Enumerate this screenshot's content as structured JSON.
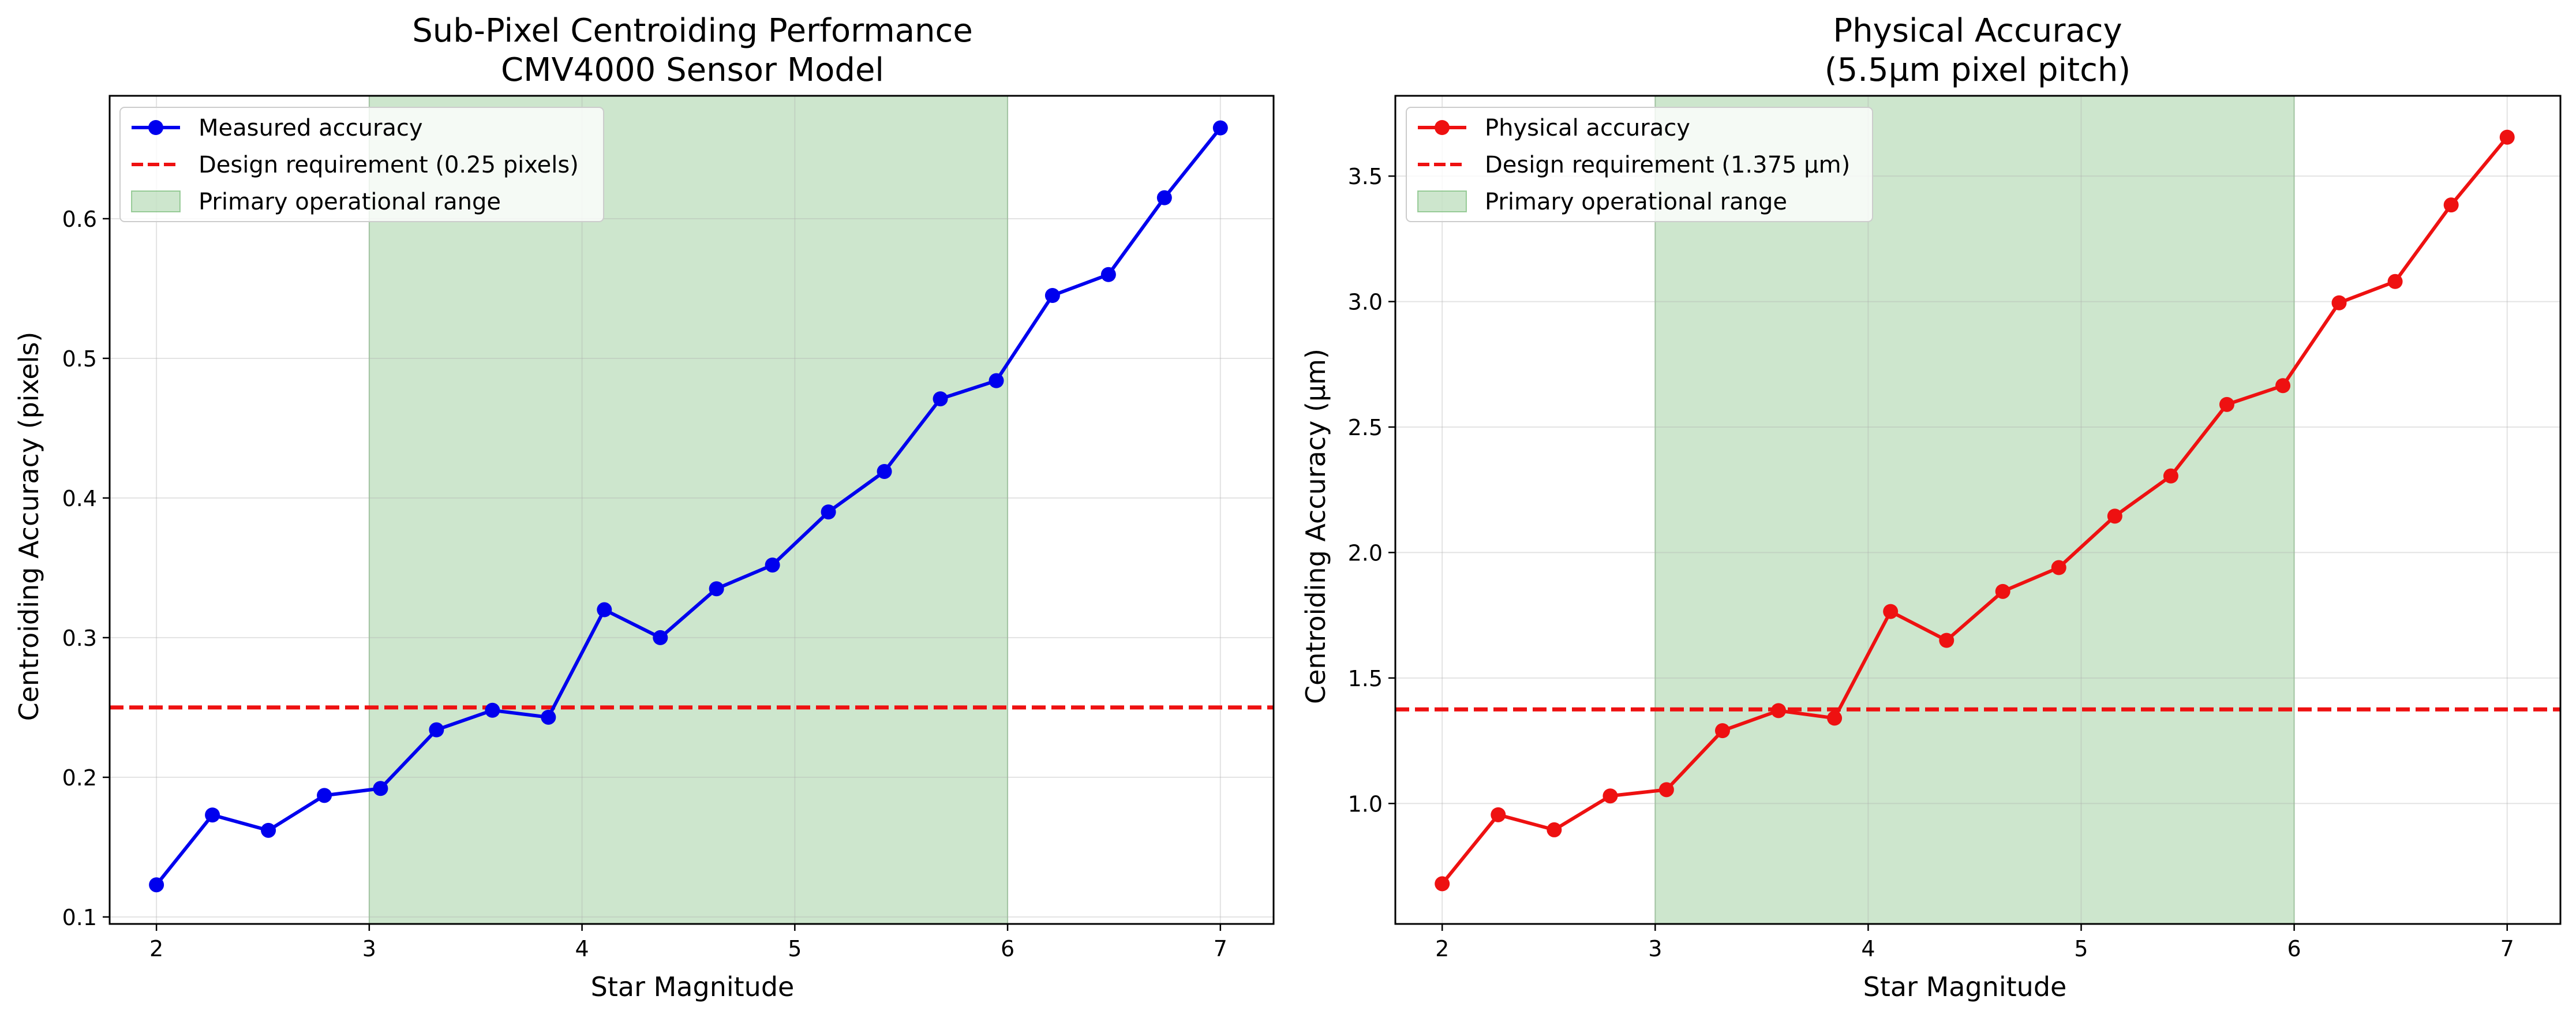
{
  "chart_data": [
    {
      "type": "line",
      "title_lines": [
        "Sub-Pixel Centroiding Performance",
        "CMV4000 Sensor Model"
      ],
      "xlabel": "Star Magnitude",
      "ylabel": "Centroiding Accuracy (pixels)",
      "xlim": [
        1.78,
        7.25
      ],
      "ylim": [
        0.095,
        0.688
      ],
      "xticks": [
        2,
        3,
        4,
        5,
        6,
        7
      ],
      "yticks": [
        0.1,
        0.2,
        0.3,
        0.4,
        0.5,
        0.6
      ],
      "ytick_labels": [
        "0.1",
        "0.2",
        "0.3",
        "0.4",
        "0.5",
        "0.6"
      ],
      "grid": true,
      "legend_position": "top-left",
      "series": [
        {
          "name": "Measured accuracy",
          "color": "#0000ee",
          "x": [
            2.0,
            2.263,
            2.526,
            2.789,
            3.053,
            3.316,
            3.579,
            3.842,
            4.105,
            4.368,
            4.632,
            4.895,
            5.158,
            5.421,
            5.684,
            5.947,
            6.211,
            6.474,
            6.737,
            7.0
          ],
          "y": [
            0.123,
            0.173,
            0.162,
            0.187,
            0.192,
            0.234,
            0.248,
            0.243,
            0.32,
            0.3,
            0.335,
            0.352,
            0.39,
            0.419,
            0.471,
            0.484,
            0.545,
            0.56,
            0.615,
            0.665
          ]
        }
      ],
      "reference_line": {
        "name": "Design requirement (0.25 pixels)",
        "y": 0.25,
        "color": "#ee1111"
      },
      "shaded_region": {
        "name": "Primary operational range",
        "x_start": 3,
        "x_end": 6,
        "color": "#4ca64c"
      }
    },
    {
      "type": "line",
      "title_lines": [
        "Physical Accuracy",
        "(5.5µm pixel pitch)"
      ],
      "xlabel": "Star Magnitude",
      "ylabel": "Centroiding Accuracy (µm)",
      "xlim": [
        1.78,
        7.25
      ],
      "ylim": [
        0.52,
        3.82
      ],
      "xticks": [
        2,
        3,
        4,
        5,
        6,
        7
      ],
      "yticks": [
        1.0,
        1.5,
        2.0,
        2.5,
        3.0,
        3.5
      ],
      "ytick_labels": [
        "1.0",
        "1.5",
        "2.0",
        "2.5",
        "3.0",
        "3.5"
      ],
      "grid": true,
      "legend_position": "top-left",
      "series": [
        {
          "name": "Physical accuracy",
          "color": "#ee1111",
          "x": [
            2.0,
            2.263,
            2.526,
            2.789,
            3.053,
            3.316,
            3.579,
            3.842,
            4.105,
            4.368,
            4.632,
            4.895,
            5.158,
            5.421,
            5.684,
            5.947,
            6.211,
            6.474,
            6.737,
            7.0
          ],
          "y": [
            0.68,
            0.955,
            0.895,
            1.03,
            1.055,
            1.29,
            1.37,
            1.34,
            1.765,
            1.65,
            1.845,
            1.94,
            2.145,
            2.305,
            2.59,
            2.665,
            2.995,
            3.08,
            3.385,
            3.655
          ]
        }
      ],
      "reference_line": {
        "name": "Design requirement (1.375 µm)",
        "y": 1.375,
        "color": "#ee1111"
      },
      "shaded_region": {
        "name": "Primary operational range",
        "x_start": 3,
        "x_end": 6,
        "color": "#4ca64c"
      }
    }
  ]
}
